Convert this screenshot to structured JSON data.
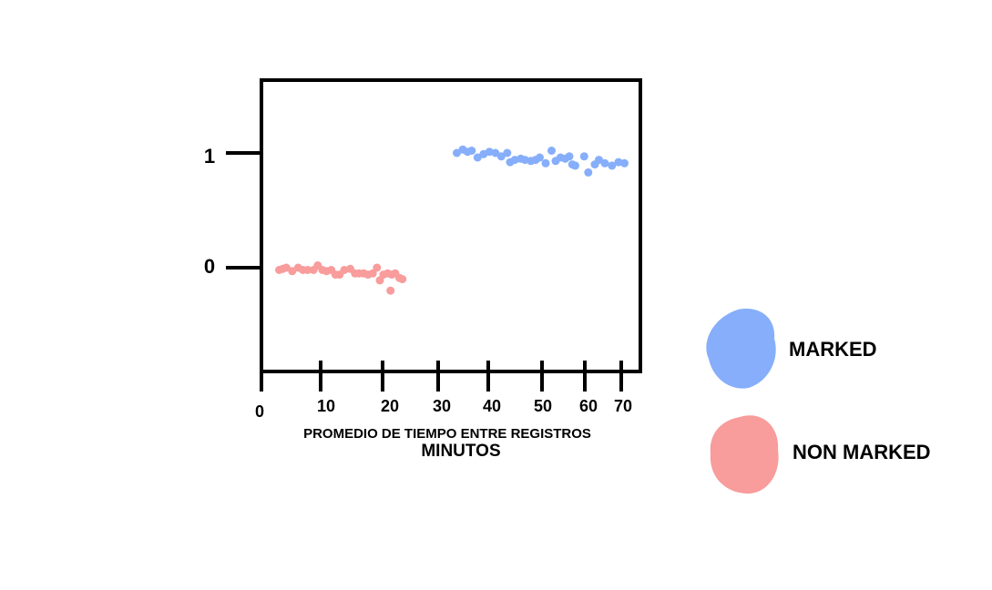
{
  "chart_data": {
    "type": "scatter",
    "xlabel": "PROMEDIO DE TIEMPO ENTRE REGISTROS",
    "xlabel_unit": "MINUTOS",
    "xlim": [
      0,
      75
    ],
    "ylim": [
      -0.95,
      1.65
    ],
    "xticks": [
      0,
      10,
      20,
      30,
      40,
      50,
      60,
      70
    ],
    "yticks": [
      0,
      1
    ],
    "grid": false,
    "legend_position": "right",
    "series": [
      {
        "name": "MARKED",
        "color": "#86aefa",
        "points": [
          [
            33.0,
            1.0
          ],
          [
            34.0,
            1.03
          ],
          [
            34.8,
            1.01
          ],
          [
            35.5,
            1.02
          ],
          [
            36.5,
            0.96
          ],
          [
            37.5,
            0.99
          ],
          [
            38.5,
            1.01
          ],
          [
            39.5,
            1.0
          ],
          [
            40.5,
            0.97
          ],
          [
            41.5,
            1.0
          ],
          [
            42.0,
            0.92
          ],
          [
            42.8,
            0.94
          ],
          [
            43.8,
            0.95
          ],
          [
            44.5,
            0.94
          ],
          [
            45.5,
            0.93
          ],
          [
            46.3,
            0.94
          ],
          [
            47.0,
            0.96
          ],
          [
            48.0,
            0.91
          ],
          [
            49.0,
            1.02
          ],
          [
            49.7,
            0.93
          ],
          [
            50.5,
            0.96
          ],
          [
            51.3,
            0.95
          ],
          [
            52.0,
            0.97
          ],
          [
            52.5,
            0.9
          ],
          [
            53.0,
            0.89
          ],
          [
            54.5,
            0.97
          ],
          [
            55.2,
            0.83
          ],
          [
            56.3,
            0.9
          ],
          [
            57.0,
            0.94
          ],
          [
            58.0,
            0.91
          ],
          [
            59.2,
            0.89
          ],
          [
            60.3,
            0.92
          ],
          [
            61.3,
            0.91
          ]
        ]
      },
      {
        "name": "NON MARKED",
        "color": "#f89c9c",
        "points": [
          [
            3.0,
            -0.02
          ],
          [
            3.6,
            -0.01
          ],
          [
            4.2,
            0.0
          ],
          [
            5.2,
            -0.03
          ],
          [
            6.2,
            0.0
          ],
          [
            7.0,
            -0.02
          ],
          [
            7.8,
            -0.02
          ],
          [
            8.8,
            -0.02
          ],
          [
            9.5,
            0.02
          ],
          [
            10.3,
            -0.02
          ],
          [
            11.0,
            -0.03
          ],
          [
            11.8,
            -0.02
          ],
          [
            12.5,
            -0.06
          ],
          [
            13.2,
            -0.06
          ],
          [
            14.0,
            -0.02
          ],
          [
            15.0,
            -0.01
          ],
          [
            15.8,
            -0.05
          ],
          [
            16.5,
            -0.05
          ],
          [
            17.3,
            -0.05
          ],
          [
            18.0,
            -0.06
          ],
          [
            18.8,
            -0.05
          ],
          [
            19.5,
            0.0
          ],
          [
            20.0,
            -0.11
          ],
          [
            20.6,
            -0.06
          ],
          [
            21.3,
            -0.05
          ],
          [
            22.0,
            -0.06
          ],
          [
            22.6,
            -0.05
          ],
          [
            23.3,
            -0.09
          ],
          [
            23.8,
            -0.1
          ],
          [
            21.8,
            -0.2
          ]
        ]
      }
    ]
  }
}
